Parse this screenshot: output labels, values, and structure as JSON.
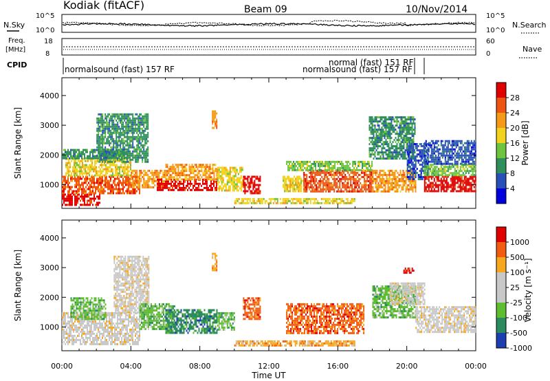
{
  "header": {
    "station": "Kodiak (fitACF)",
    "beam": "Beam 09",
    "date": "10/Nov/2014"
  },
  "strips": {
    "nsky_label": "N.Sky",
    "nsearch_label": "N.Search",
    "freq_label_1": "Freq.",
    "freq_label_2": "[MHz]",
    "nave_label": "Nave",
    "cpid_label": "CPID",
    "noise_ticks_left": [
      "10^5",
      "10^0"
    ],
    "noise_ticks_right": [
      "10^5",
      "10^0"
    ],
    "freq_ticks_left": [
      "18",
      "8"
    ],
    "nave_ticks_right": [
      "60",
      "0"
    ],
    "cpid_1": "normalsound (fast) 157 RF",
    "cpid_2": "normal (fast) 151 RF",
    "cpid_3": "normalsound (fast) 157 RF"
  },
  "colors": {
    "power": [
      "#0000dd",
      "#2850b8",
      "#2f8f5a",
      "#6ec43c",
      "#f2d21c",
      "#f59a18",
      "#ee5512",
      "#e00000"
    ],
    "velocity": [
      "#e00000",
      "#f25c10",
      "#f7a81e",
      "#c8c8c8",
      "#c8c8c8",
      "#5ebd30",
      "#2b8a5e",
      "#1e3fb0"
    ]
  },
  "chart_data": [
    {
      "type": "heatmap",
      "panel": "power",
      "ylabel": "Slant Range [km]",
      "ylim": [
        200,
        4600
      ],
      "yticks": [
        "1000",
        "2000",
        "3000",
        "4000"
      ],
      "xlim": [
        "00:00",
        "24:00"
      ],
      "colorbar_label": "Power [dB]",
      "colorbar_ticks": [
        "4",
        "8",
        "12",
        "16",
        "20",
        "24",
        "28"
      ],
      "bands": [
        {
          "t0": 0.0,
          "t1": 2.2,
          "r0": 350,
          "r1": 700,
          "level": 7
        },
        {
          "t0": 0.0,
          "t1": 4.5,
          "r0": 700,
          "r1": 1300,
          "level": 6
        },
        {
          "t0": 0.2,
          "t1": 4.0,
          "r0": 1300,
          "r1": 1900,
          "level": 4
        },
        {
          "t0": 0.0,
          "t1": 3.8,
          "r0": 1900,
          "r1": 2200,
          "level": 2
        },
        {
          "t0": 2.0,
          "t1": 5.0,
          "r0": 1800,
          "r1": 3400,
          "level": 2
        },
        {
          "t0": 4.0,
          "t1": 6.0,
          "r0": 900,
          "r1": 1500,
          "level": 5
        },
        {
          "t0": 5.5,
          "t1": 9.0,
          "r0": 800,
          "r1": 1200,
          "level": 7
        },
        {
          "t0": 6.0,
          "t1": 9.0,
          "r0": 1200,
          "r1": 1700,
          "level": 5
        },
        {
          "t0": 8.7,
          "t1": 9.0,
          "r0": 2900,
          "r1": 3500,
          "level": 5
        },
        {
          "t0": 9.0,
          "t1": 10.5,
          "r0": 800,
          "r1": 1600,
          "level": 4
        },
        {
          "t0": 10.5,
          "t1": 11.5,
          "r0": 700,
          "r1": 1300,
          "level": 7
        },
        {
          "t0": 12.8,
          "t1": 14.0,
          "r0": 800,
          "r1": 1300,
          "level": 4
        },
        {
          "t0": 14.0,
          "t1": 18.0,
          "r0": 800,
          "r1": 1500,
          "level": 6
        },
        {
          "t0": 13.0,
          "t1": 18.0,
          "r0": 1500,
          "r1": 1800,
          "level": 3
        },
        {
          "t0": 10.0,
          "t1": 17.0,
          "r0": 350,
          "r1": 550,
          "level": 4
        },
        {
          "t0": 18.0,
          "t1": 20.5,
          "r0": 800,
          "r1": 1500,
          "level": 5
        },
        {
          "t0": 17.8,
          "t1": 20.5,
          "r0": 1900,
          "r1": 3300,
          "level": 2
        },
        {
          "t0": 20.0,
          "t1": 21.2,
          "r0": 1200,
          "r1": 2400,
          "level": 1
        },
        {
          "t0": 21.0,
          "t1": 24.0,
          "r0": 800,
          "r1": 1300,
          "level": 7
        },
        {
          "t0": 21.0,
          "t1": 24.0,
          "r0": 1300,
          "r1": 1700,
          "level": 3
        },
        {
          "t0": 21.0,
          "t1": 24.0,
          "r0": 1700,
          "r1": 2500,
          "level": 1
        }
      ]
    },
    {
      "type": "heatmap",
      "panel": "velocity",
      "ylabel": "Slant Range [km]",
      "xlabel": "Time UT",
      "ylim": [
        200,
        4600
      ],
      "yticks": [
        "1000",
        "2000",
        "3000",
        "4000"
      ],
      "xlim": [
        "00:00",
        "24:00"
      ],
      "xticks": [
        "00:00",
        "04:00",
        "08:00",
        "12:00",
        "16:00",
        "20:00",
        "00:00"
      ],
      "colorbar_label": "Velocity [m s⁻¹]",
      "colorbar_ticks": [
        "1000",
        "500",
        "100",
        "25",
        "-25",
        "-100",
        "-500",
        "-1000"
      ],
      "bands": [
        {
          "t0": 0.0,
          "t1": 4.5,
          "r0": 400,
          "r1": 1500,
          "level": 3
        },
        {
          "t0": 0.5,
          "t1": 2.5,
          "r0": 1300,
          "r1": 2000,
          "level": 5
        },
        {
          "t0": 3.0,
          "t1": 5.0,
          "r0": 1500,
          "r1": 3400,
          "level": 3
        },
        {
          "t0": 4.5,
          "t1": 6.5,
          "r0": 900,
          "r1": 1800,
          "level": 5
        },
        {
          "t0": 6.0,
          "t1": 9.0,
          "r0": 800,
          "r1": 1600,
          "level": 6
        },
        {
          "t0": 8.7,
          "t1": 9.0,
          "r0": 2900,
          "r1": 3500,
          "level": 2
        },
        {
          "t0": 9.0,
          "t1": 10.0,
          "r0": 900,
          "r1": 1500,
          "level": 5
        },
        {
          "t0": 10.5,
          "t1": 11.5,
          "r0": 1300,
          "r1": 2000,
          "level": 1
        },
        {
          "t0": 13.0,
          "t1": 17.5,
          "r0": 800,
          "r1": 1800,
          "level": 1
        },
        {
          "t0": 10.0,
          "t1": 17.0,
          "r0": 350,
          "r1": 550,
          "level": 2
        },
        {
          "t0": 18.0,
          "t1": 20.5,
          "r0": 1300,
          "r1": 2400,
          "level": 5
        },
        {
          "t0": 19.8,
          "t1": 20.4,
          "r0": 2800,
          "r1": 3000,
          "level": 0
        },
        {
          "t0": 20.5,
          "t1": 24.0,
          "r0": 800,
          "r1": 1700,
          "level": 3
        },
        {
          "t0": 19.0,
          "t1": 21.0,
          "r0": 1800,
          "r1": 2500,
          "level": 3
        }
      ]
    }
  ]
}
